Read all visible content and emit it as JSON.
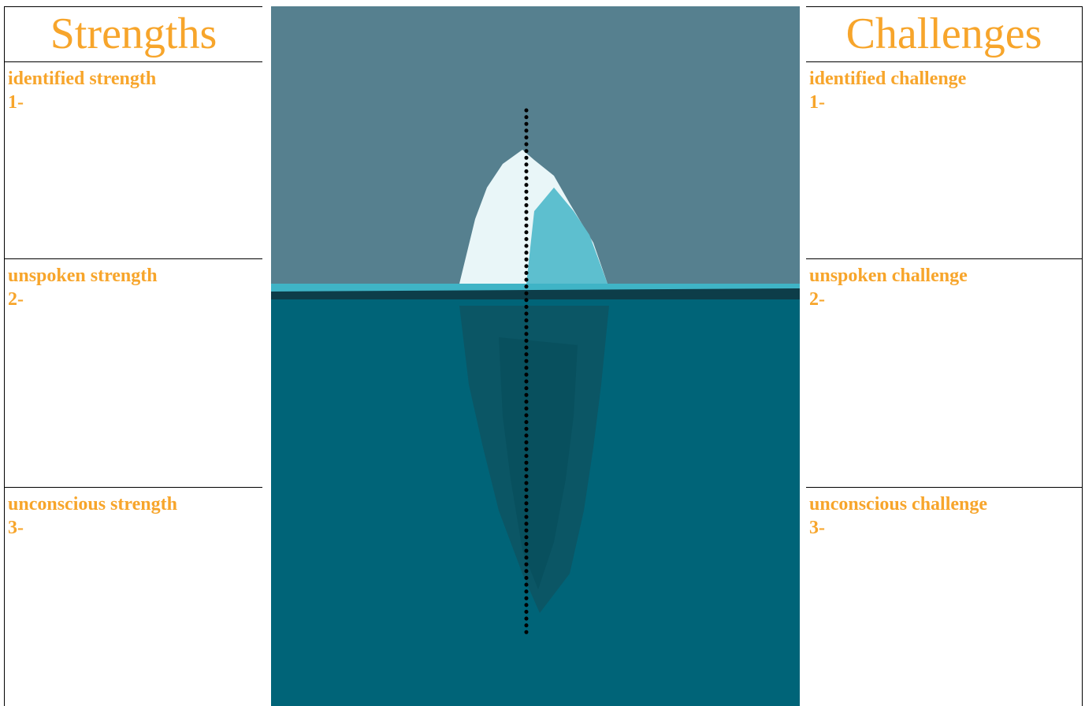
{
  "header": {
    "left": "Strengths",
    "right": "Challenges"
  },
  "left_rows": [
    {
      "label": "identified strength",
      "item": "1-"
    },
    {
      "label": "unspoken strength",
      "item": "2-"
    },
    {
      "label": "unconscious strength",
      "item": "3-"
    }
  ],
  "right_rows": [
    {
      "label": "identified challenge",
      "item": "1-"
    },
    {
      "label": "unspoken challenge",
      "item": "2-"
    },
    {
      "label": "unconscious challenge",
      "item": "3-"
    }
  ]
}
